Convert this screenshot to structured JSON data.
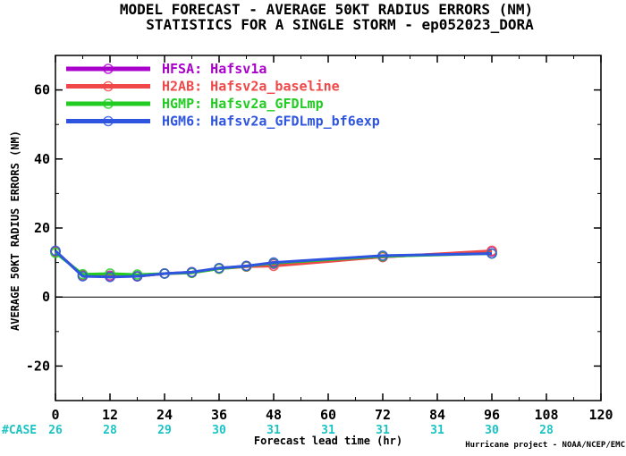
{
  "chart_data": {
    "type": "line",
    "title": "MODEL FORECAST - AVERAGE 50KT RADIUS ERRORS (NM)",
    "subtitle": "STATISTICS FOR A SINGLE STORM - ep052023_DORA",
    "xlabel": "Forecast lead time (hr)",
    "ylabel": "AVERAGE 50KT RADIUS ERRORS (NM)",
    "xlim": [
      0,
      120
    ],
    "ylim": [
      -30,
      70
    ],
    "xticks": [
      0,
      12,
      24,
      36,
      48,
      60,
      72,
      84,
      96,
      108,
      120
    ],
    "yticks": [
      -20,
      0,
      20,
      40,
      60
    ],
    "zero_line": true,
    "legend_position": "top-left",
    "case_label": "#CASE",
    "case_counts": [
      {
        "x": 0,
        "n": "26"
      },
      {
        "x": 12,
        "n": "28"
      },
      {
        "x": 24,
        "n": "29"
      },
      {
        "x": 36,
        "n": "30"
      },
      {
        "x": 48,
        "n": "31"
      },
      {
        "x": 60,
        "n": "31"
      },
      {
        "x": 72,
        "n": "31"
      },
      {
        "x": 84,
        "n": "31"
      },
      {
        "x": 96,
        "n": "30"
      },
      {
        "x": 108,
        "n": "28"
      }
    ],
    "credit": "Hurricane project - NOAA/NCEP/EMC",
    "series": [
      {
        "name": "HFSA: Hafsv1a",
        "color": "#aa00cc",
        "points": [
          [
            0,
            13.2
          ],
          [
            6,
            6.3
          ],
          [
            12,
            6.2
          ],
          [
            18,
            6.0
          ],
          [
            24,
            6.8
          ],
          [
            30,
            7.2
          ],
          [
            36,
            8.3
          ],
          [
            42,
            9.0
          ],
          [
            48,
            9.6
          ],
          [
            72,
            11.6
          ],
          [
            96,
            13.2
          ]
        ]
      },
      {
        "name": "H2AB: Hafsv2a_baseline",
        "color": "#f04848",
        "points": [
          [
            0,
            13.2
          ],
          [
            6,
            6.3
          ],
          [
            12,
            6.0
          ],
          [
            18,
            6.0
          ],
          [
            24,
            6.8
          ],
          [
            30,
            7.0
          ],
          [
            36,
            8.2
          ],
          [
            42,
            8.8
          ],
          [
            48,
            9.0
          ],
          [
            72,
            11.6
          ],
          [
            96,
            13.4
          ]
        ]
      },
      {
        "name": "HGMP: Hafsv2a_GFDLmp",
        "color": "#22cc22",
        "points": [
          [
            0,
            12.8
          ],
          [
            6,
            6.6
          ],
          [
            12,
            6.8
          ],
          [
            18,
            6.5
          ],
          [
            24,
            6.8
          ],
          [
            30,
            7.0
          ],
          [
            36,
            8.2
          ],
          [
            42,
            8.9
          ],
          [
            48,
            9.8
          ],
          [
            72,
            11.8
          ],
          [
            96,
            12.6
          ]
        ]
      },
      {
        "name": "HGM6: Hafsv2a_GFDLmp_bf6exp",
        "color": "#2f55e0",
        "points": [
          [
            0,
            13.4
          ],
          [
            6,
            6.0
          ],
          [
            12,
            5.8
          ],
          [
            18,
            6.0
          ],
          [
            24,
            6.8
          ],
          [
            30,
            7.2
          ],
          [
            36,
            8.4
          ],
          [
            42,
            9.0
          ],
          [
            48,
            10.0
          ],
          [
            72,
            12.0
          ],
          [
            96,
            12.6
          ]
        ]
      }
    ]
  }
}
